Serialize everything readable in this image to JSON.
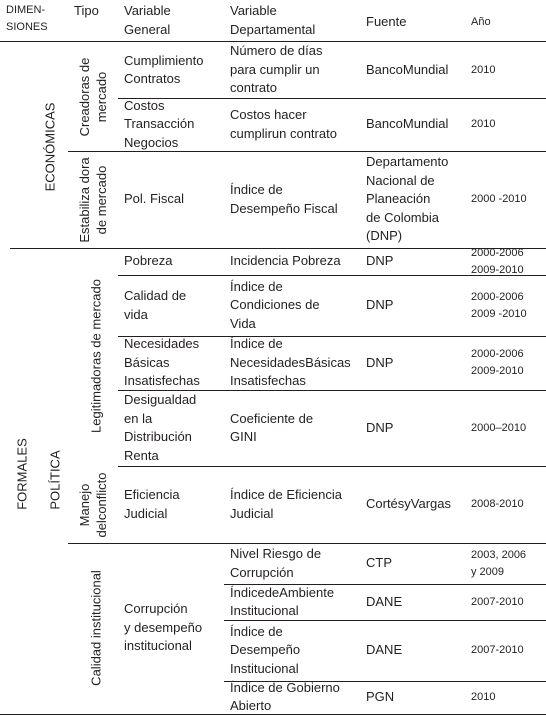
{
  "header": {
    "dimensiones": [
      "DIMEN-",
      "SIONES"
    ],
    "tipo": "Tipo",
    "variable_general": [
      "Variable",
      "General"
    ],
    "variable_departamental": [
      "Variable",
      "Departamental"
    ],
    "fuente": "Fuente",
    "anio": "Año"
  },
  "dimensions": {
    "formales": "FORMALES",
    "economicas": "ECONÓMICAS",
    "politica": "POLÍTICA"
  },
  "tipos": {
    "creadoras": [
      "Creadoras de",
      "mercado"
    ],
    "estabilizadora": [
      "Estabiliza dora",
      "de mercado"
    ],
    "legitimadoras": "Legitimadoras de mercado",
    "manejo": [
      "Manejo",
      "delconflicto"
    ],
    "calidad": "Calidad institucional"
  },
  "rows": [
    {
      "general": [
        "Cumplimiento",
        "Contratos"
      ],
      "departamental": [
        "Número de días",
        "para cumplir un",
        "contrato"
      ],
      "fuente": [
        "BancoMundial"
      ],
      "anio": [
        "2010"
      ]
    },
    {
      "general": [
        "Costos",
        "Transacción",
        "Negocios"
      ],
      "departamental": [
        "Costos hacer",
        "cumplirun contrato"
      ],
      "fuente": [
        "BancoMundial"
      ],
      "anio": [
        "2010"
      ]
    },
    {
      "general": [
        "Pol. Fiscal"
      ],
      "departamental": [
        "Índice de",
        "Desempeño Fiscal"
      ],
      "fuente": [
        "Departamento",
        "Nacional de",
        "Planeación",
        "de Colombia",
        "(DNP)"
      ],
      "anio": [
        "2000 -2010"
      ]
    },
    {
      "general": [
        "Pobreza"
      ],
      "departamental": [
        "Incidencia Pobreza"
      ],
      "fuente": [
        "DNP"
      ],
      "anio": [
        "2000-2006",
        "2009-2010"
      ]
    },
    {
      "general": [
        "Calidad de",
        "vida"
      ],
      "departamental": [
        "Índice de",
        "Condiciones de",
        "Vida"
      ],
      "fuente": [
        "DNP"
      ],
      "anio": [
        "2000-2006",
        "2009 -2010"
      ]
    },
    {
      "general": [
        "Necesidades",
        "Básicas",
        "Insatisfechas"
      ],
      "departamental": [
        "Índice de",
        "NecesidadesBásicas",
        "Insatisfechas"
      ],
      "fuente": [
        "DNP"
      ],
      "anio": [
        "2000-2006",
        "2009-2010"
      ]
    },
    {
      "general": [
        "Desigualdad",
        "en la",
        "Distribución",
        "Renta"
      ],
      "departamental": [
        "Coeficiente de",
        "GINI"
      ],
      "fuente": [
        "DNP"
      ],
      "anio": [
        "2000–2010"
      ]
    },
    {
      "general": [
        "Eficiencia",
        "Judicial"
      ],
      "departamental": [
        "Índice de Eficiencia",
        "Judicial"
      ],
      "fuente": [
        "CortésyVargas"
      ],
      "anio": [
        "2008-2010"
      ]
    },
    {
      "general": [],
      "departamental": [
        "Nivel Riesgo de",
        "Corrupción"
      ],
      "fuente": [
        "CTP"
      ],
      "anio": [
        "2003, 2006",
        "y 2009"
      ]
    },
    {
      "general": [],
      "departamental": [
        "ÍndicedeAmbiente",
        "Institucional"
      ],
      "fuente": [
        "DANE"
      ],
      "anio": [
        "2007-2010"
      ]
    },
    {
      "general": [],
      "departamental": [
        "Índice de",
        "Desempeño",
        "Institucional"
      ],
      "fuente": [
        "DANE"
      ],
      "anio": [
        "2007-2010"
      ]
    },
    {
      "general": [],
      "departamental": [
        "Índice de Gobierno",
        "Abierto"
      ],
      "fuente": [
        "PGN"
      ],
      "anio": [
        "2010"
      ]
    }
  ],
  "merged_general": [
    "Corrupción",
    "y desempeño",
    "institucional"
  ]
}
